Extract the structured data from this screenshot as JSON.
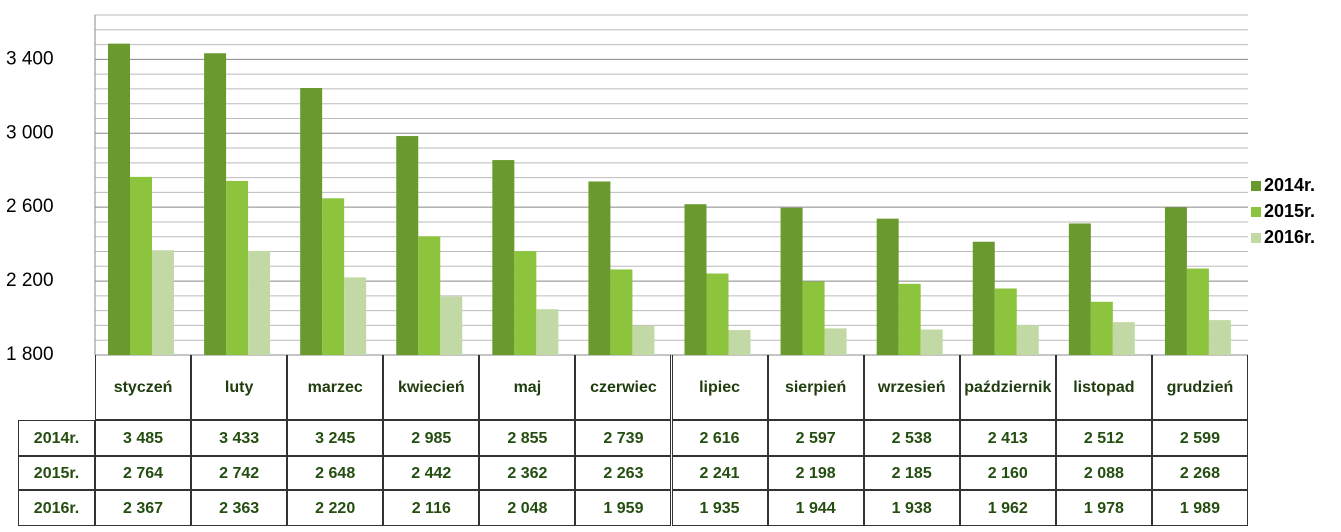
{
  "chart_data": {
    "type": "bar",
    "categories": [
      "styczeń",
      "luty",
      "marzec",
      "kwiecień",
      "maj",
      "czerwiec",
      "lipiec",
      "sierpień",
      "wrzesień",
      "październik",
      "listopad",
      "grudzień"
    ],
    "series": [
      {
        "name": "2014r.",
        "color": "#6a9a2e",
        "values": [
          3485,
          3433,
          3245,
          2985,
          2855,
          2739,
          2616,
          2597,
          2538,
          2413,
          2512,
          2599
        ],
        "value_labels": [
          "3 485",
          "3 433",
          "3 245",
          "2 985",
          "2 855",
          "2 739",
          "2 616",
          "2 597",
          "2 538",
          "2 413",
          "2 512",
          "2 599"
        ]
      },
      {
        "name": "2015r.",
        "color": "#8cc43e",
        "values": [
          2764,
          2742,
          2648,
          2442,
          2362,
          2263,
          2241,
          2198,
          2185,
          2160,
          2088,
          2268
        ],
        "value_labels": [
          "2 764",
          "2 742",
          "2 648",
          "2 442",
          "2 362",
          "2 263",
          "2 241",
          "2 198",
          "2 185",
          "2 160",
          "2 088",
          "2 268"
        ]
      },
      {
        "name": "2016r.",
        "color": "#c3d9a5",
        "values": [
          2367,
          2363,
          2220,
          2116,
          2048,
          1959,
          1935,
          1944,
          1938,
          1962,
          1978,
          1989
        ],
        "value_labels": [
          "2 367",
          "2 363",
          "2 220",
          "2 116",
          "2 048",
          "1 959",
          "1 935",
          "1 944",
          "1 938",
          "1 962",
          "1 978",
          "1 989"
        ]
      }
    ],
    "ylim": [
      1800,
      3640
    ],
    "yticks": [
      {
        "value": 1800,
        "label": "1 800"
      },
      {
        "value": 2200,
        "label": "2 200"
      },
      {
        "value": 2600,
        "label": "2 600"
      },
      {
        "value": 3000,
        "label": "3 000"
      },
      {
        "value": 3400,
        "label": "3 400"
      }
    ],
    "minor_yticks": [
      1880,
      1960,
      2040,
      2120,
      2280,
      2360,
      2440,
      2520,
      2680,
      2760,
      2840,
      2920,
      3080,
      3160,
      3240,
      3320,
      3480,
      3560,
      3640
    ],
    "grid": true,
    "legend": "right"
  }
}
